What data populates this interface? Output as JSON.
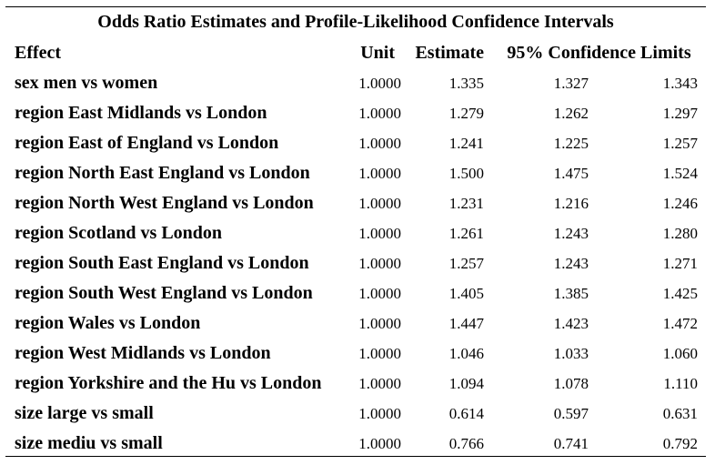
{
  "title": "Odds Ratio Estimates and Profile-Likelihood Confidence Intervals",
  "headers": {
    "effect": "Effect",
    "unit": "Unit",
    "estimate": "Estimate",
    "confidence_limits": "95% Confidence Limits"
  },
  "rows": [
    {
      "effect": "sex men vs women",
      "unit": "1.0000",
      "estimate": "1.335",
      "lower": "1.327",
      "upper": "1.343"
    },
    {
      "effect": "region East Midlands vs London",
      "unit": "1.0000",
      "estimate": "1.279",
      "lower": "1.262",
      "upper": "1.297"
    },
    {
      "effect": "region East of England vs London",
      "unit": "1.0000",
      "estimate": "1.241",
      "lower": "1.225",
      "upper": "1.257"
    },
    {
      "effect": "region North East England vs London",
      "unit": "1.0000",
      "estimate": "1.500",
      "lower": "1.475",
      "upper": "1.524"
    },
    {
      "effect": "region North West England vs London",
      "unit": "1.0000",
      "estimate": "1.231",
      "lower": "1.216",
      "upper": "1.246"
    },
    {
      "effect": "region Scotland vs London",
      "unit": "1.0000",
      "estimate": "1.261",
      "lower": "1.243",
      "upper": "1.280"
    },
    {
      "effect": "region South East England vs London",
      "unit": "1.0000",
      "estimate": "1.257",
      "lower": "1.243",
      "upper": "1.271"
    },
    {
      "effect": "region South West England vs London",
      "unit": "1.0000",
      "estimate": "1.405",
      "lower": "1.385",
      "upper": "1.425"
    },
    {
      "effect": "region Wales vs London",
      "unit": "1.0000",
      "estimate": "1.447",
      "lower": "1.423",
      "upper": "1.472"
    },
    {
      "effect": "region West Midlands vs London",
      "unit": "1.0000",
      "estimate": "1.046",
      "lower": "1.033",
      "upper": "1.060"
    },
    {
      "effect": "region Yorkshire and the Hu vs London",
      "unit": "1.0000",
      "estimate": "1.094",
      "lower": "1.078",
      "upper": "1.110"
    },
    {
      "effect": "size large vs small",
      "unit": "1.0000",
      "estimate": "0.614",
      "lower": "0.597",
      "upper": "0.631"
    },
    {
      "effect": "size mediu vs small",
      "unit": "1.0000",
      "estimate": "0.766",
      "lower": "0.741",
      "upper": "0.792"
    }
  ]
}
